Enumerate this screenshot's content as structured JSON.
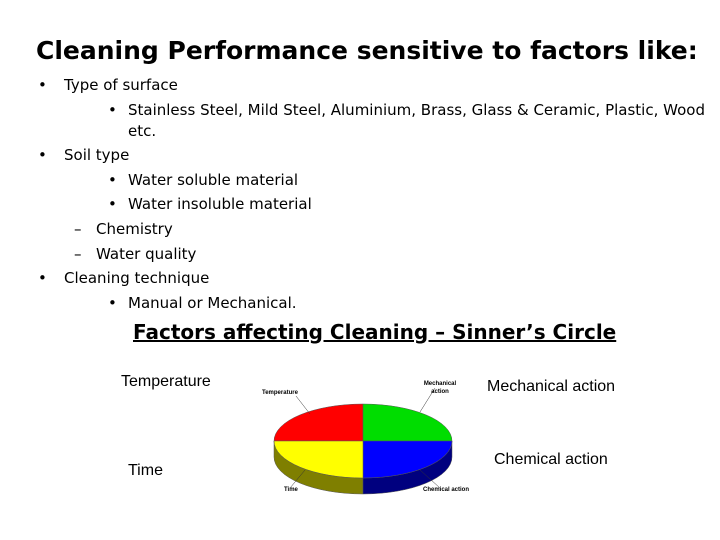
{
  "title": "Cleaning Performance sensitive to factors like:",
  "bullets": {
    "surface": "Type of surface",
    "surface_sub_1": "Stainless Steel, Mild Steel, Aluminium, Brass, Glass & Ceramic, Plastic, Wood",
    "surface_sub_1_cont": "etc.",
    "soil": "Soil type",
    "soil_sub_1": "Water soluble material",
    "soil_sub_2": "Water insoluble material",
    "dash_1": "Chemistry",
    "dash_2": "Water quality",
    "technique": "Cleaning technique",
    "technique_sub_1": "Manual or Mechanical."
  },
  "markers": {
    "bullet": "•",
    "dash": "–"
  },
  "subtitle": "Factors affecting Cleaning – Sinner’s Circle",
  "side_labels": {
    "temperature": "Temperature",
    "time": "Time",
    "mechanical": "Mechanical action",
    "chemical": "Chemical action"
  },
  "pie": {
    "labels": {
      "temperature": "Temperature",
      "mechanical": "Mechanical action",
      "time": "Time",
      "chemical": "Chemical action"
    },
    "colors": {
      "temperature": "#ff0000",
      "mechanical": "#00dd00",
      "time": "#ffff00",
      "chemical": "#0000ff",
      "time_side": "#7f7f00",
      "chemical_side": "#00007f"
    }
  }
}
